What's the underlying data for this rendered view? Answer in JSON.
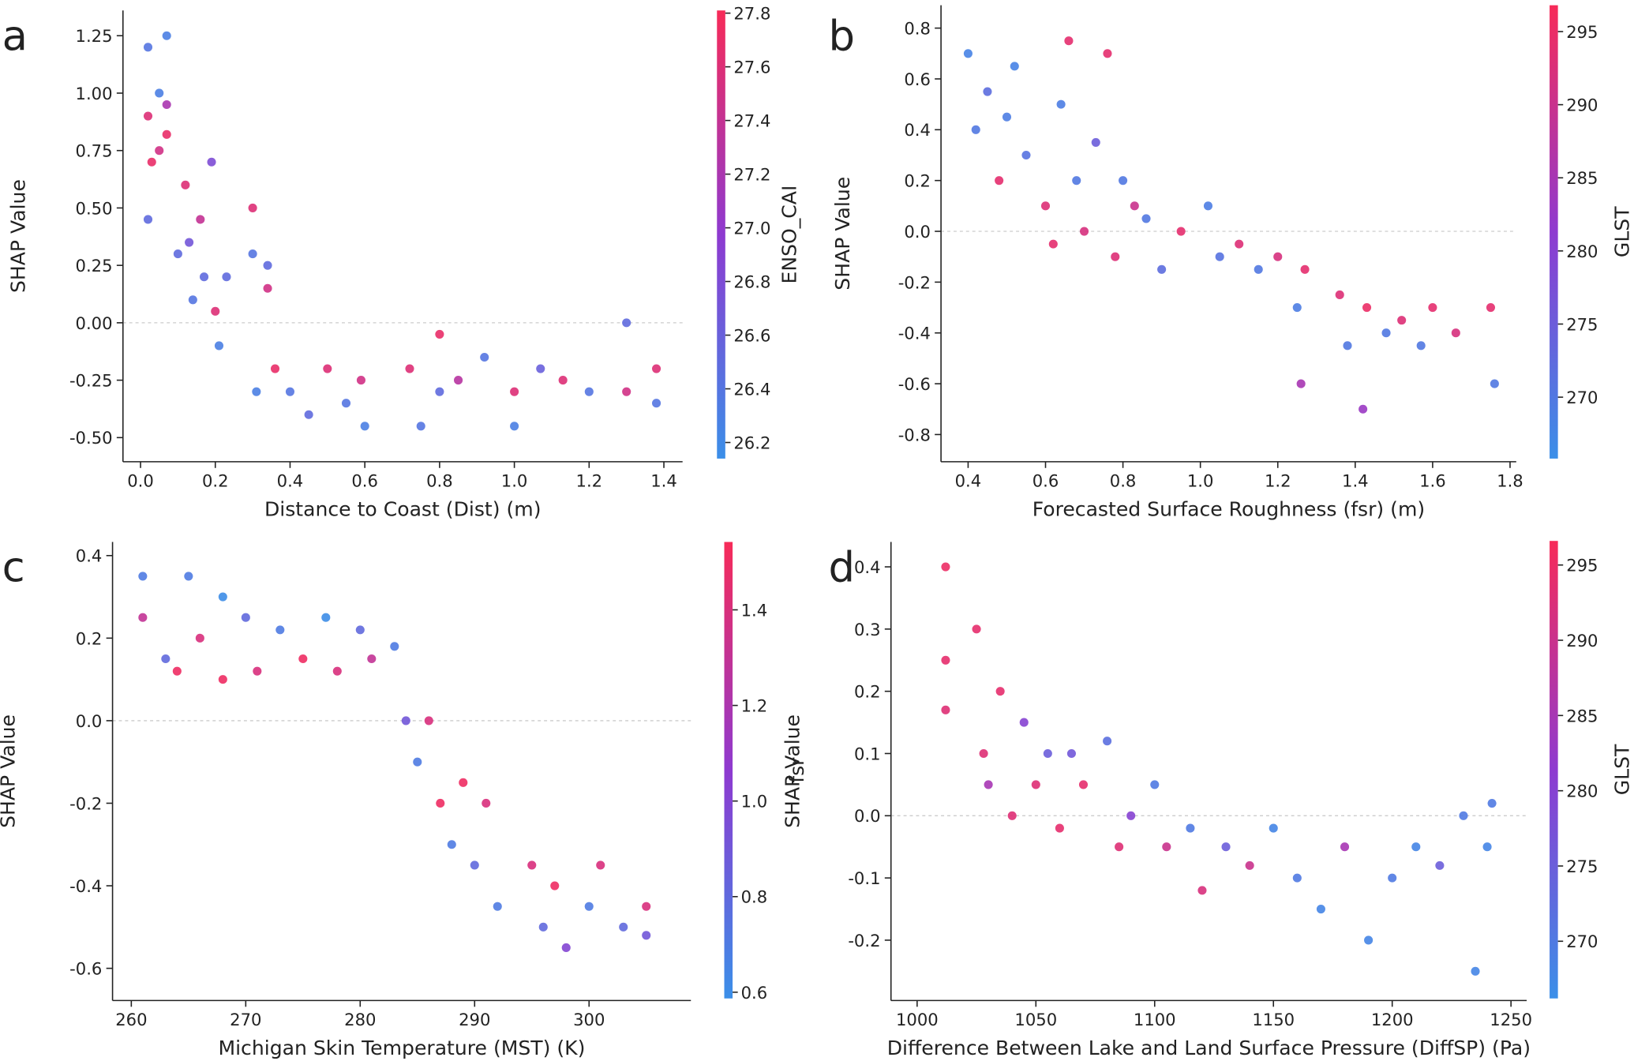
{
  "chart_data": [
    {
      "type": "scatter",
      "panel": "a",
      "xlabel": "Distance to Coast (Dist) (m)",
      "ylabel": "SHAP Value",
      "colorbar_label": "ENSO_CAI",
      "zero_line": true,
      "colormap": [
        "#3b8fe8",
        "#8e3ad0",
        "#f72b58"
      ],
      "xlim": [
        -0.047,
        1.45
      ],
      "ylim": [
        -0.605,
        1.36
      ],
      "clim": [
        26.14,
        27.81
      ],
      "xticks": [
        {
          "value": 0,
          "label": "0.0"
        },
        0.2,
        0.4,
        0.6,
        0.8,
        {
          "value": 1,
          "label": "1.0"
        },
        1.2,
        1.4
      ],
      "yticks": [
        {
          "value": -0.5,
          "label": "-0.50"
        },
        {
          "value": -0.25,
          "label": "-0.25"
        },
        {
          "value": 0,
          "label": "0.00"
        },
        0.25,
        {
          "value": 0.5,
          "label": "0.50"
        },
        0.75,
        {
          "value": 1,
          "label": "1.00"
        },
        1.25
      ],
      "cticks": [
        26.2,
        26.4,
        26.6,
        26.8,
        {
          "value": 27,
          "label": "27.0"
        },
        27.2,
        27.4,
        27.6,
        27.8
      ],
      "x": [
        0.02,
        0.02,
        0.03,
        0.02,
        0.05,
        0.05,
        0.07,
        0.07,
        0.07,
        0.1,
        0.12,
        0.13,
        0.14,
        0.16,
        0.17,
        0.19,
        0.2,
        0.21,
        0.23,
        0.3,
        0.3,
        0.34,
        0.34,
        0.31,
        0.36,
        0.4,
        0.45,
        0.5,
        0.55,
        0.59,
        0.6,
        0.72,
        0.75,
        0.8,
        0.8,
        0.85,
        0.92,
        1.0,
        1.0,
        1.07,
        1.13,
        1.2,
        1.3,
        1.3,
        1.38,
        1.38
      ],
      "values": [
        1.2,
        0.9,
        0.7,
        0.45,
        1.0,
        0.75,
        1.25,
        0.95,
        0.82,
        0.3,
        0.6,
        0.35,
        0.1,
        0.45,
        0.2,
        0.7,
        0.05,
        -0.1,
        0.2,
        0.5,
        0.3,
        0.25,
        0.15,
        -0.3,
        -0.2,
        -0.3,
        -0.4,
        -0.2,
        -0.35,
        -0.25,
        -0.45,
        -0.2,
        -0.45,
        -0.05,
        -0.3,
        -0.25,
        -0.15,
        -0.3,
        -0.45,
        -0.2,
        -0.25,
        -0.3,
        0.0,
        -0.3,
        -0.2,
        -0.35
      ],
      "color_values": [
        26.4,
        27.6,
        27.7,
        26.5,
        26.3,
        27.5,
        26.3,
        27.2,
        27.7,
        26.5,
        27.6,
        26.7,
        26.4,
        27.4,
        26.5,
        26.8,
        27.6,
        26.3,
        26.5,
        27.6,
        26.4,
        26.5,
        27.5,
        26.3,
        27.7,
        26.4,
        26.5,
        27.6,
        26.4,
        27.5,
        26.3,
        27.6,
        26.4,
        27.7,
        26.5,
        27.3,
        26.4,
        27.6,
        26.3,
        26.6,
        27.6,
        26.4,
        26.5,
        27.5,
        27.6,
        26.4
      ]
    },
    {
      "type": "scatter",
      "panel": "b",
      "xlabel": "Forecasted Surface Roughness (fsr) (m)",
      "ylabel": "SHAP Value",
      "colorbar_label": "GLST",
      "zero_line": true,
      "colormap": [
        "#3b8fe8",
        "#8e3ad0",
        "#f72b58"
      ],
      "xlim": [
        0.33,
        1.816
      ],
      "ylim": [
        -0.907,
        0.89
      ],
      "clim": [
        265.8,
        296.8
      ],
      "xticks": [
        0.4,
        0.6,
        0.8,
        {
          "value": 1,
          "label": "1.0"
        },
        1.2,
        1.4,
        1.6,
        1.8
      ],
      "yticks": [
        -0.8,
        -0.6,
        -0.4,
        -0.2,
        {
          "value": 0,
          "label": "0.0"
        },
        0.2,
        0.4,
        0.6,
        0.8
      ],
      "cticks": [
        270,
        275,
        280,
        285,
        290,
        295
      ],
      "x": [
        0.4,
        0.42,
        0.45,
        0.48,
        0.5,
        0.52,
        0.55,
        0.6,
        0.62,
        0.64,
        0.66,
        0.68,
        0.7,
        0.73,
        0.76,
        0.78,
        0.8,
        0.83,
        0.86,
        0.9,
        0.95,
        1.02,
        1.05,
        1.1,
        1.15,
        1.2,
        1.25,
        1.26,
        1.27,
        1.36,
        1.38,
        1.42,
        1.43,
        1.48,
        1.52,
        1.57,
        1.6,
        1.66,
        1.75,
        1.76
      ],
      "values": [
        0.7,
        0.4,
        0.55,
        0.2,
        0.45,
        0.65,
        0.3,
        0.1,
        -0.05,
        0.5,
        0.75,
        0.2,
        0.0,
        0.35,
        0.7,
        -0.1,
        0.2,
        0.1,
        0.05,
        -0.15,
        0.0,
        0.1,
        -0.1,
        -0.05,
        -0.15,
        -0.1,
        -0.3,
        -0.6,
        -0.15,
        -0.25,
        -0.45,
        -0.7,
        -0.3,
        -0.4,
        -0.35,
        -0.45,
        -0.3,
        -0.4,
        -0.3,
        -0.6
      ],
      "color_values": [
        268,
        270,
        272,
        294,
        269,
        268,
        271,
        293,
        294,
        269,
        294,
        270,
        292,
        275,
        294,
        293,
        270,
        290,
        270,
        272,
        294,
        269,
        271,
        293,
        270,
        292,
        269,
        285,
        294,
        293,
        270,
        283,
        295,
        270,
        293,
        270,
        294,
        292,
        294,
        270
      ]
    },
    {
      "type": "scatter",
      "panel": "c",
      "xlabel": "Michigan Skin Temperature (MST) (K)",
      "ylabel": "SHAP Value",
      "colorbar_label": "fsr",
      "zero_line": true,
      "colormap": [
        "#3b8fe8",
        "#8e3ad0",
        "#f72b58"
      ],
      "xlim": [
        258.36,
        308.9
      ],
      "ylim": [
        -0.678,
        0.433
      ],
      "clim": [
        0.587,
        1.542
      ],
      "xticks": [
        260,
        270,
        280,
        290,
        300
      ],
      "yticks": [
        -0.6,
        -0.4,
        -0.2,
        {
          "value": 0,
          "label": "0.0"
        },
        0.2,
        0.4
      ],
      "cticks": [
        0.6,
        0.8,
        {
          "value": 1,
          "label": "1.0"
        },
        1.2,
        1.4
      ],
      "x": [
        261,
        261,
        263,
        264,
        265,
        266,
        268,
        268,
        270,
        271,
        273,
        275,
        277,
        278,
        280,
        281,
        283,
        284,
        285,
        286,
        287,
        288,
        289,
        290,
        291,
        292,
        295,
        296,
        297,
        298,
        300,
        301,
        303,
        305,
        305
      ],
      "values": [
        0.35,
        0.25,
        0.15,
        0.12,
        0.35,
        0.2,
        0.3,
        0.1,
        0.25,
        0.12,
        0.22,
        0.15,
        0.25,
        0.12,
        0.22,
        0.15,
        0.18,
        0.0,
        -0.1,
        0.0,
        -0.2,
        -0.3,
        -0.15,
        -0.35,
        -0.2,
        -0.45,
        -0.35,
        -0.5,
        -0.4,
        -0.55,
        -0.45,
        -0.35,
        -0.5,
        -0.45,
        -0.52
      ],
      "color_values": [
        0.7,
        1.3,
        0.8,
        1.5,
        0.7,
        1.4,
        0.6,
        1.5,
        0.8,
        1.4,
        0.7,
        1.5,
        0.6,
        1.4,
        0.8,
        1.3,
        0.7,
        0.9,
        0.7,
        1.4,
        1.5,
        0.7,
        1.5,
        0.8,
        1.4,
        0.7,
        1.4,
        0.8,
        1.5,
        1.0,
        0.7,
        1.4,
        0.8,
        1.4,
        0.9
      ]
    },
    {
      "type": "scatter",
      "panel": "d",
      "xlabel": "Difference Between Lake and Land Surface Pressure (DiffSP) (Pa)",
      "ylabel": "SHAP Value",
      "colorbar_label": "GLST",
      "zero_line": true,
      "colormap": [
        "#3b8fe8",
        "#8e3ad0",
        "#f72b58"
      ],
      "xlim": [
        989,
        1256.6
      ],
      "ylim": [
        -0.297,
        0.44
      ],
      "clim": [
        266.2,
        296.6
      ],
      "xticks": [
        1000,
        1050,
        1100,
        1150,
        1200,
        1250
      ],
      "yticks": [
        -0.2,
        -0.1,
        {
          "value": 0,
          "label": "0.0"
        },
        0.1,
        0.2,
        0.3,
        0.4
      ],
      "cticks": [
        270,
        275,
        280,
        285,
        290,
        295
      ],
      "x": [
        1012,
        1012,
        1012,
        1025,
        1028,
        1030,
        1035,
        1040,
        1045,
        1050,
        1055,
        1060,
        1065,
        1070,
        1080,
        1085,
        1090,
        1100,
        1105,
        1115,
        1120,
        1130,
        1140,
        1150,
        1160,
        1170,
        1180,
        1190,
        1200,
        1210,
        1220,
        1230,
        1235,
        1240,
        1242
      ],
      "values": [
        0.4,
        0.25,
        0.17,
        0.3,
        0.1,
        0.05,
        0.2,
        0.0,
        0.15,
        0.05,
        0.1,
        -0.02,
        0.1,
        0.05,
        0.12,
        -0.05,
        0.0,
        0.05,
        -0.05,
        -0.02,
        -0.12,
        -0.05,
        -0.08,
        -0.02,
        -0.1,
        -0.15,
        -0.05,
        -0.2,
        -0.1,
        -0.05,
        -0.08,
        0.0,
        -0.25,
        -0.05,
        0.02
      ],
      "color_values": [
        295,
        294,
        293,
        294,
        293,
        285,
        294,
        293,
        280,
        293,
        275,
        294,
        276,
        294,
        272,
        293,
        280,
        270,
        290,
        270,
        292,
        275,
        290,
        268,
        270,
        268,
        285,
        268,
        270,
        268,
        275,
        270,
        268,
        268,
        270
      ]
    }
  ]
}
